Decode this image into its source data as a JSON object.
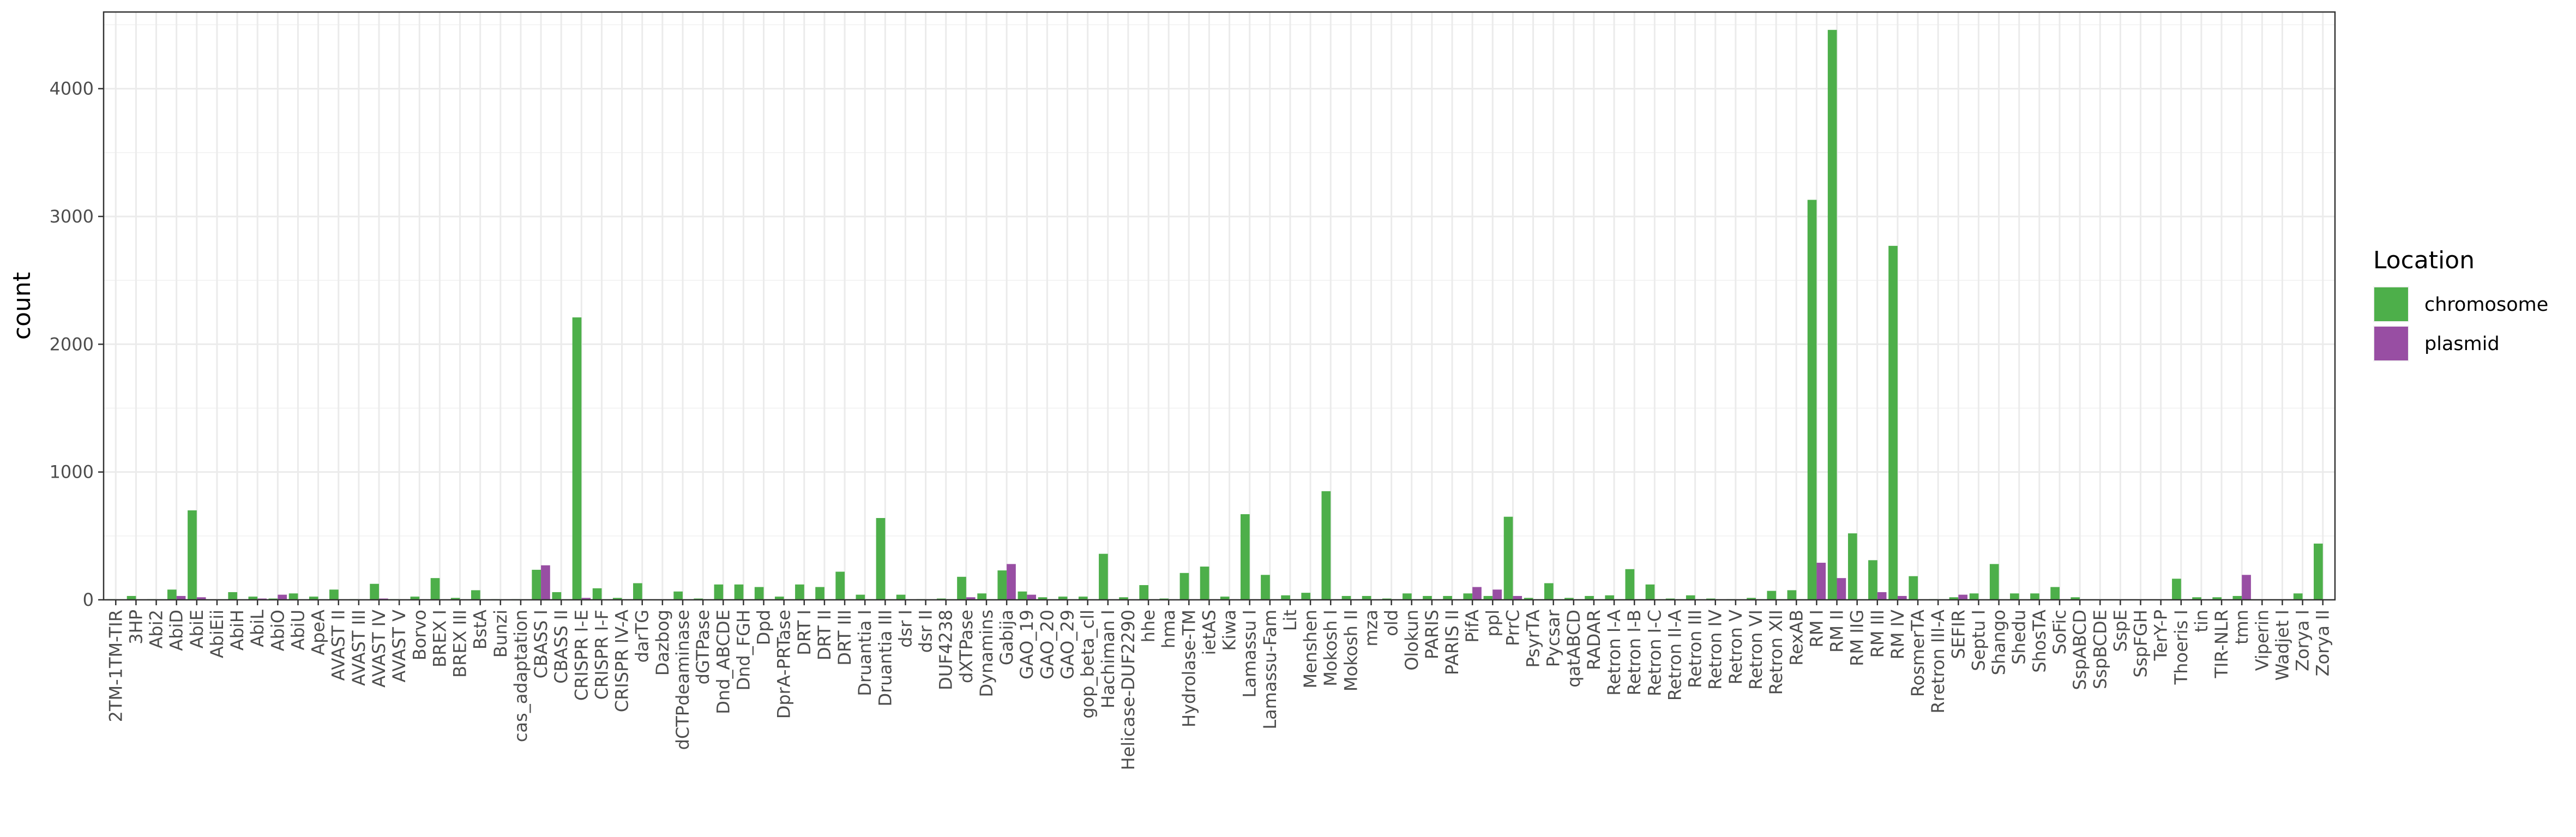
{
  "chart_data": {
    "type": "bar",
    "title": "",
    "xlabel": "",
    "ylabel": "count",
    "ylim": [
      0,
      4600
    ],
    "yticks": [
      0,
      1000,
      2000,
      3000,
      4000
    ],
    "grid": true,
    "legend": {
      "title": "Location",
      "placement": "right",
      "entries": [
        {
          "label": "chromosome",
          "color": "#4DAF4A"
        },
        {
          "label": "plasmid",
          "color": "#984EA3"
        }
      ]
    },
    "categories": [
      "2TM-1TM-TIR",
      "3HP",
      "Abi2",
      "AbiD",
      "AbiE",
      "AbiEii",
      "AbiH",
      "AbiL",
      "AbiO",
      "AbiU",
      "ApeA",
      "AVAST II",
      "AVAST III",
      "AVAST IV",
      "AVAST V",
      "Borvo",
      "BREX I",
      "BREX III",
      "BstA",
      "Bunzi",
      "cas_adaptation",
      "CBASS I",
      "CBASS II",
      "CRISPR I-E",
      "CRISPR I-F",
      "CRISPR IV-A",
      "darTG",
      "Dazbog",
      "dCTPdeaminase",
      "dGTPase",
      "Dnd_ABCDE",
      "Dnd_FGH",
      "Dpd",
      "DprA-PRTase",
      "DRT I",
      "DRT II",
      "DRT III",
      "Druantia I",
      "Druantia III",
      "dsr I",
      "dsr II",
      "DUF4238",
      "dXTPase",
      "Dynamins",
      "Gabija",
      "GAO_19",
      "GAO_20",
      "GAO_29",
      "gop_beta_cll",
      "Hachiman I",
      "Helicase-DUF2290",
      "hhe",
      "hma",
      "Hydrolase-TM",
      "ietAS",
      "Kiwa",
      "Lamassu I",
      "Lamassu-Fam",
      "Lit",
      "Menshen",
      "Mokosh I",
      "Mokosh II",
      "mza",
      "old",
      "Olokun",
      "PARIS",
      "PARIS II",
      "PifA",
      "ppl",
      "PrrC",
      "PsyrTA",
      "Pycsar",
      "qatABCD",
      "RADAR",
      "Retron I-A",
      "Retron I-B",
      "Retron I-C",
      "Retron II-A",
      "Retron III",
      "Retron IV",
      "Retron V",
      "Retron VI",
      "Retron XII",
      "RexAB",
      "RM I",
      "RM II",
      "RM IIG",
      "RM III",
      "RM IV",
      "RosmerTA",
      "Rretron III-A",
      "SEFIR",
      "Septu I",
      "Shango",
      "Shedu",
      "ShosTA",
      "SoFic",
      "SspABCD",
      "SspBCDE",
      "SspE",
      "SspFGH",
      "TerY-P",
      "Thoeris I",
      "tin",
      "TIR-NLR",
      "tmn",
      "Viperin",
      "Wadjet I",
      "Zorya I",
      "Zorya II"
    ],
    "series": [
      {
        "name": "chromosome",
        "color": "#4DAF4A",
        "values": [
          5,
          30,
          5,
          80,
          700,
          0,
          60,
          25,
          10,
          50,
          25,
          80,
          5,
          125,
          5,
          25,
          170,
          15,
          75,
          5,
          5,
          235,
          60,
          2210,
          90,
          15,
          130,
          0,
          65,
          10,
          120,
          120,
          100,
          25,
          120,
          100,
          220,
          40,
          640,
          40,
          5,
          10,
          180,
          50,
          230,
          65,
          20,
          25,
          25,
          360,
          20,
          115,
          10,
          210,
          260,
          25,
          670,
          195,
          35,
          55,
          850,
          30,
          30,
          10,
          50,
          30,
          30,
          50,
          30,
          650,
          15,
          130,
          15,
          30,
          35,
          240,
          120,
          10,
          35,
          10,
          5,
          15,
          70,
          75,
          3130,
          4460,
          520,
          310,
          2770,
          185,
          5,
          20,
          50,
          280,
          50,
          50,
          100,
          20,
          0,
          0,
          0,
          0,
          165,
          20,
          20,
          30,
          0,
          0,
          50,
          440
        ]
      },
      {
        "name": "plasmid",
        "color": "#984EA3",
        "values": [
          0,
          0,
          0,
          30,
          20,
          0,
          0,
          10,
          40,
          0,
          0,
          0,
          0,
          10,
          0,
          0,
          0,
          0,
          0,
          0,
          0,
          270,
          0,
          15,
          0,
          0,
          0,
          0,
          0,
          0,
          0,
          0,
          0,
          0,
          0,
          0,
          0,
          0,
          0,
          0,
          0,
          0,
          20,
          0,
          280,
          40,
          0,
          0,
          0,
          0,
          0,
          0,
          0,
          0,
          0,
          0,
          0,
          0,
          0,
          0,
          0,
          0,
          0,
          0,
          0,
          0,
          0,
          100,
          80,
          30,
          0,
          0,
          0,
          0,
          0,
          0,
          0,
          0,
          0,
          0,
          0,
          0,
          0,
          0,
          290,
          170,
          0,
          60,
          30,
          0,
          0,
          40,
          0,
          0,
          0,
          0,
          0,
          0,
          0,
          0,
          0,
          0,
          0,
          0,
          0,
          195,
          0,
          0,
          0,
          0
        ]
      }
    ]
  }
}
